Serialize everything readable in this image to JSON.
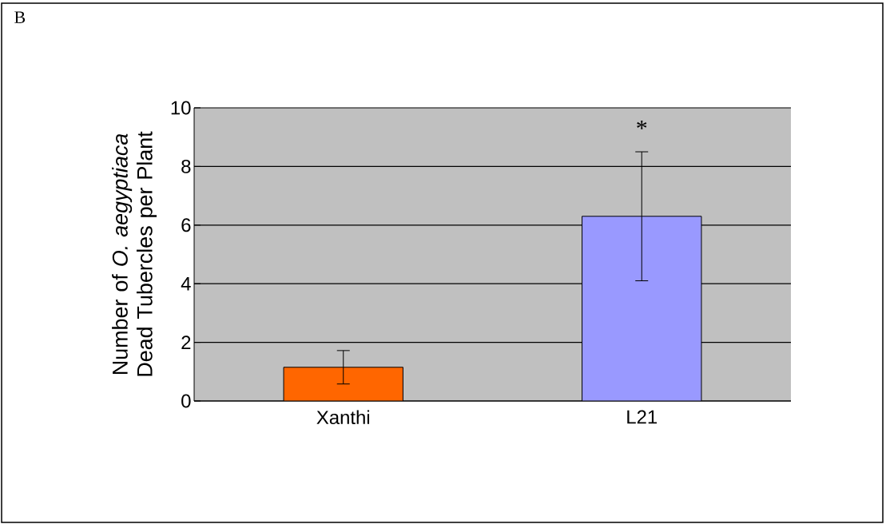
{
  "chart_data": {
    "type": "bar",
    "title": "B",
    "ylabel": "Number of *O. aegyptiaca* Dead Tubercles per Plant",
    "categories": [
      "Xanthi",
      "L21"
    ],
    "values": [
      1.15,
      6.3
    ],
    "errors": [
      0.57,
      2.2
    ],
    "colors": [
      "#ff6600",
      "#9999ff"
    ],
    "ylim": [
      0,
      10
    ],
    "yticks": [
      0,
      2,
      4,
      6,
      8,
      10
    ],
    "grid": "y",
    "annotations": [
      "*"
    ]
  }
}
